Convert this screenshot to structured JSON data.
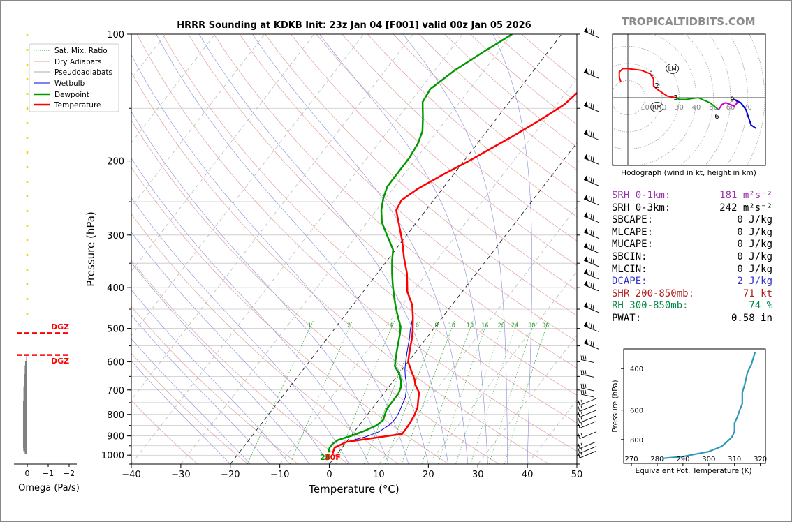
{
  "site": {
    "brand": "TROPICALTIDBITS.COM"
  },
  "chart_data": {
    "type": "line",
    "title": "HRRR Sounding at KDKB Init: 23z Jan 04 [F001] valid 00z Jan 05 2026",
    "xlabel": "Temperature (°C)",
    "ylabel": "Pressure (hPa)",
    "xlim": [
      -40,
      50
    ],
    "ylim": [
      1050,
      100
    ],
    "y_scale": "log",
    "x_ticks": [
      "−40",
      "−30",
      "−20",
      "−10",
      "0",
      "10",
      "20",
      "30",
      "40",
      "50"
    ],
    "y_ticks": [
      "100",
      "200",
      "300",
      "400",
      "500",
      "600",
      "700",
      "800",
      "900",
      "1000"
    ],
    "surface_label": {
      "dewpoint": "26",
      "temperature": "30F"
    },
    "legend": {
      "placement": "top-left",
      "entries": [
        "Sat. Mix. Ratio",
        "Dry Adiabats",
        "Pseudoadiabats",
        "Wetbulb",
        "Dewpoint",
        "Temperature"
      ]
    },
    "mixing_ratio_labels": [
      "1",
      "2",
      "4",
      "6",
      "8",
      "10",
      "13",
      "16",
      "20",
      "24",
      "30",
      "36"
    ],
    "series": [
      {
        "name": "Temperature",
        "color": "#ff0000",
        "points": [
          [
            -1,
            990
          ],
          [
            -1.5,
            960
          ],
          [
            0,
            930
          ],
          [
            5,
            910
          ],
          [
            10,
            890
          ],
          [
            10,
            860
          ],
          [
            9.8,
            830
          ],
          [
            9.5,
            800
          ],
          [
            9,
            770
          ],
          [
            8,
            740
          ],
          [
            7,
            710
          ],
          [
            5,
            680
          ],
          [
            4,
            660
          ],
          [
            2,
            630
          ],
          [
            0,
            600
          ],
          [
            -1,
            575
          ],
          [
            -2,
            550
          ],
          [
            -3,
            525
          ],
          [
            -4,
            505
          ],
          [
            -6,
            470
          ],
          [
            -8,
            440
          ],
          [
            -11,
            410
          ],
          [
            -14,
            370
          ],
          [
            -17,
            340
          ],
          [
            -20,
            310
          ],
          [
            -23,
            285
          ],
          [
            -26,
            262
          ],
          [
            -26.5,
            248
          ],
          [
            -25,
            233
          ],
          [
            -22,
            215
          ],
          [
            -19,
            200
          ],
          [
            -16.5,
            187
          ],
          [
            -14,
            175
          ],
          [
            -11,
            160
          ],
          [
            -8.5,
            147
          ],
          [
            -7.5,
            135
          ],
          [
            -6.5,
            122
          ],
          [
            -5.5,
            110
          ],
          [
            -4.8,
            100
          ]
        ]
      },
      {
        "name": "Dewpoint",
        "color": "#009900",
        "points": [
          [
            -2,
            985
          ],
          [
            -2.5,
            960
          ],
          [
            -2.5,
            940
          ],
          [
            -2,
            920
          ],
          [
            0,
            900
          ],
          [
            2,
            875
          ],
          [
            3.5,
            850
          ],
          [
            4,
            825
          ],
          [
            3.5,
            800
          ],
          [
            3,
            775
          ],
          [
            3,
            745
          ],
          [
            3,
            715
          ],
          [
            2.5,
            690
          ],
          [
            1.5,
            665
          ],
          [
            0,
            640
          ],
          [
            -2,
            615
          ],
          [
            -3,
            590
          ],
          [
            -4,
            565
          ],
          [
            -5,
            540
          ],
          [
            -6,
            515
          ],
          [
            -7,
            495
          ],
          [
            -9,
            470
          ],
          [
            -11,
            445
          ],
          [
            -13,
            420
          ],
          [
            -15,
            395
          ],
          [
            -17,
            370
          ],
          [
            -19,
            345
          ],
          [
            -20.5,
            325
          ],
          [
            -24,
            300
          ],
          [
            -27,
            280
          ],
          [
            -29,
            262
          ],
          [
            -30.5,
            245
          ],
          [
            -31.5,
            230
          ],
          [
            -31.5,
            212
          ],
          [
            -31.5,
            197
          ],
          [
            -32,
            182
          ],
          [
            -33,
            170
          ],
          [
            -35,
            158
          ],
          [
            -37.5,
            145
          ],
          [
            -38,
            135
          ],
          [
            -36,
            122
          ],
          [
            -33,
            110
          ],
          [
            -30,
            100
          ]
        ]
      },
      {
        "name": "Wetbulb",
        "color": "#0000dd",
        "points": [
          [
            -1,
            990
          ],
          [
            -1.5,
            960
          ],
          [
            0,
            930
          ],
          [
            3,
            905
          ],
          [
            5,
            880
          ],
          [
            6,
            850
          ],
          [
            6.3,
            820
          ],
          [
            6,
            790
          ],
          [
            5.5,
            760
          ],
          [
            5,
            730
          ],
          [
            4,
            700
          ],
          [
            3,
            675
          ],
          [
            1.7,
            650
          ],
          [
            0.5,
            625
          ],
          [
            -0.5,
            600
          ],
          [
            -1.5,
            575
          ],
          [
            -2.5,
            550
          ],
          [
            -3.5,
            525
          ],
          [
            -4.5,
            505
          ],
          [
            -6,
            470
          ],
          [
            -8,
            440
          ],
          [
            -11,
            410
          ],
          [
            -14,
            370
          ],
          [
            -17,
            340
          ],
          [
            -20,
            310
          ],
          [
            -23,
            285
          ],
          [
            -26,
            262
          ],
          [
            -26.5,
            248
          ],
          [
            -25,
            233
          ],
          [
            -22,
            215
          ],
          [
            -19,
            200
          ],
          [
            -16.5,
            187
          ],
          [
            -14,
            175
          ],
          [
            -11,
            160
          ],
          [
            -8.5,
            147
          ],
          [
            -7.5,
            135
          ],
          [
            -6.5,
            122
          ],
          [
            -5.5,
            110
          ],
          [
            -4.8,
            100
          ]
        ]
      }
    ]
  },
  "omega": {
    "xlabel": "Omega (Pa/s)",
    "x_ticks": [
      "0",
      "−1",
      "−2"
    ],
    "dgz_label_top": "DGZ",
    "dgz_label_bottom": "DGZ",
    "dgz_pressures": [
      513,
      578
    ],
    "bars": [
      {
        "p": 980,
        "v": -0.12
      },
      {
        "p": 965,
        "v": -0.19
      },
      {
        "p": 950,
        "v": -0.2
      },
      {
        "p": 935,
        "v": -0.2
      },
      {
        "p": 920,
        "v": -0.2
      },
      {
        "p": 905,
        "v": -0.2
      },
      {
        "p": 890,
        "v": -0.2
      },
      {
        "p": 875,
        "v": -0.2
      },
      {
        "p": 860,
        "v": -0.2
      },
      {
        "p": 845,
        "v": -0.2
      },
      {
        "p": 830,
        "v": -0.2
      },
      {
        "p": 815,
        "v": -0.2
      },
      {
        "p": 800,
        "v": -0.2
      },
      {
        "p": 785,
        "v": -0.2
      },
      {
        "p": 770,
        "v": -0.2
      },
      {
        "p": 755,
        "v": -0.2
      },
      {
        "p": 740,
        "v": -0.18
      },
      {
        "p": 725,
        "v": -0.18
      },
      {
        "p": 710,
        "v": -0.18
      },
      {
        "p": 695,
        "v": -0.18
      },
      {
        "p": 680,
        "v": -0.16
      },
      {
        "p": 665,
        "v": -0.15
      },
      {
        "p": 650,
        "v": -0.15
      },
      {
        "p": 635,
        "v": -0.12
      },
      {
        "p": 620,
        "v": -0.12
      },
      {
        "p": 605,
        "v": -0.1
      },
      {
        "p": 590,
        "v": -0.05
      },
      {
        "p": 560,
        "v": -0.03
      }
    ]
  },
  "hodograph": {
    "caption": "Hodograph (wind in kt, height in km)",
    "ring_labels": [
      "10",
      "20",
      "30",
      "40",
      "50",
      "60",
      "70"
    ],
    "height_labels": [
      "1",
      "2",
      "3",
      "6",
      "9"
    ],
    "lm_label": "LM",
    "rm_label": "RM"
  },
  "params": [
    {
      "label": "SRH 0-1km:",
      "value": "181 m²s⁻²",
      "color": "#9933aa"
    },
    {
      "label": "SRH 0-3km:",
      "value": "242 m²s⁻²",
      "color": "#000000"
    },
    {
      "label": "SBCAPE:",
      "value": "0 J/kg",
      "color": "#000000"
    },
    {
      "label": "MLCAPE:",
      "value": "0 J/kg",
      "color": "#000000"
    },
    {
      "label": "MUCAPE:",
      "value": "0 J/kg",
      "color": "#000000"
    },
    {
      "label": "SBCIN:",
      "value": "0 J/kg",
      "color": "#000000"
    },
    {
      "label": "MLCIN:",
      "value": "0 J/kg",
      "color": "#000000"
    },
    {
      "label": "DCAPE:",
      "value": "2 J/kg",
      "color": "#3333cc"
    },
    {
      "label": "SHR 200-850mb:",
      "value": "71 kt",
      "color": "#b22222"
    },
    {
      "label": "RH 300-850mb:",
      "value": "74 %",
      "color": "#008844"
    },
    {
      "label": "PWAT:",
      "value": "0.58 in",
      "color": "#000000"
    }
  ],
  "theta_e": {
    "xlabel": "Equivalent Pot. Temperature (K)",
    "ylabel": "Pressure (hPa)",
    "x_ticks": [
      "270",
      "280",
      "290",
      "300",
      "310",
      "320"
    ],
    "y_ticks": [
      "400",
      "600",
      "800"
    ],
    "xlim": [
      267,
      322
    ],
    "line_color": "#2e97b8",
    "points": [
      [
        282,
        990
      ],
      [
        282.5,
        960
      ],
      [
        290,
        945
      ],
      [
        300,
        900
      ],
      [
        305,
        855
      ],
      [
        307,
        820
      ],
      [
        309,
        780
      ],
      [
        310,
        740
      ],
      [
        310,
        680
      ],
      [
        311,
        645
      ],
      [
        312,
        600
      ],
      [
        313,
        565
      ],
      [
        313,
        505
      ],
      [
        314,
        465
      ],
      [
        315,
        415
      ],
      [
        316.5,
        385
      ],
      [
        318,
        340
      ]
    ]
  }
}
